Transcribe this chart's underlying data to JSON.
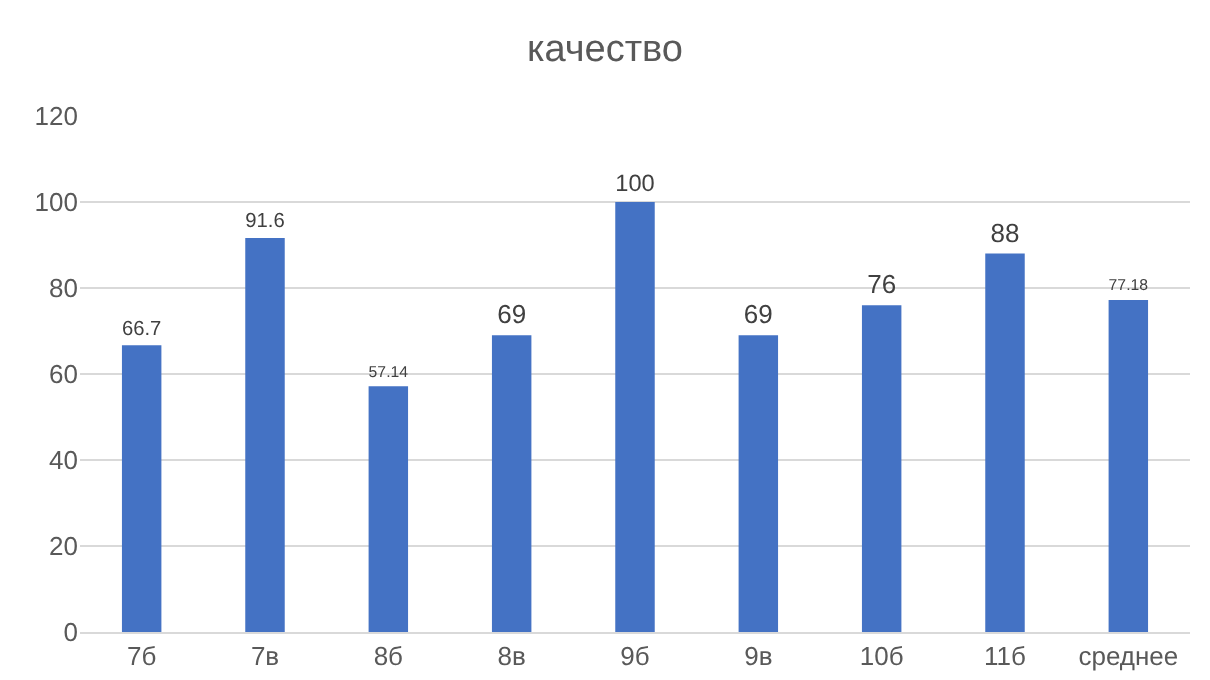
{
  "chart_data": {
    "type": "bar",
    "title": "качество",
    "categories": [
      "7б",
      "7в",
      "8б",
      "8в",
      "9б",
      "9в",
      "10б",
      "11б",
      "среднее"
    ],
    "values": [
      66.7,
      91.6,
      57.14,
      69,
      100,
      69,
      76,
      88,
      77.18
    ],
    "color": "#4472c4",
    "ylim": [
      0,
      120
    ],
    "yticks": [
      0,
      20,
      40,
      60,
      80,
      100,
      120
    ],
    "grid": "y",
    "data_labels": true,
    "legend": false
  }
}
